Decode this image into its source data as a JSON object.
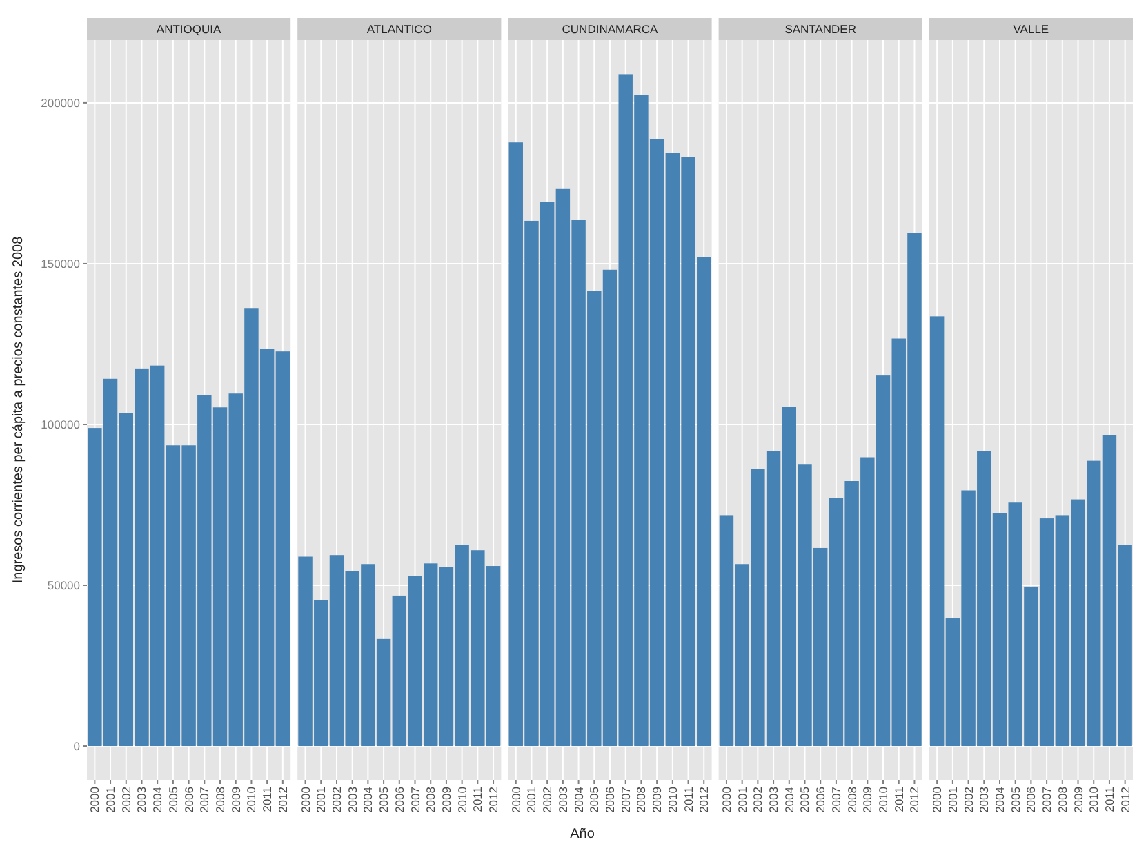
{
  "chart_data": [
    {
      "type": "bar",
      "title": "ANTIOQUIA",
      "ylabel": "Ingresos corrientes per cápita a precios constantes 2008",
      "categories": [
        "2000",
        "2001",
        "2002",
        "2003",
        "2004",
        "2005",
        "2006",
        "2007",
        "2008",
        "2009",
        "2010",
        "2011",
        "2012"
      ],
      "values": [
        98900,
        114200,
        103600,
        117400,
        118300,
        93500,
        93500,
        109200,
        105300,
        109600,
        136200,
        123400,
        122700
      ],
      "color": "#4682b4",
      "ylim": [
        -10500,
        219500
      ],
      "yticks": [
        0,
        50000,
        100000,
        150000,
        200000
      ],
      "grid": true
    },
    {
      "type": "bar",
      "title": "ATLANTICO",
      "categories": [
        "2000",
        "2001",
        "2002",
        "2003",
        "2004",
        "2005",
        "2006",
        "2007",
        "2008",
        "2009",
        "2010",
        "2011",
        "2012"
      ],
      "values": [
        58900,
        45300,
        59400,
        54500,
        56600,
        33300,
        46800,
        53000,
        56800,
        55600,
        62600,
        60900,
        56000
      ],
      "color": "#4682b4",
      "ylim": [
        -10500,
        219500
      ],
      "yticks": [
        0,
        50000,
        100000,
        150000,
        200000
      ],
      "grid": true,
      "tick_labels": "x"
    },
    {
      "type": "bar",
      "title": "CUNDINAMARCA",
      "xlabel": "Año",
      "categories": [
        "2000",
        "2001",
        "2002",
        "2003",
        "2004",
        "2005",
        "2006",
        "2007",
        "2008",
        "2009",
        "2010",
        "2011",
        "2012"
      ],
      "values": [
        187700,
        163300,
        169100,
        173200,
        163500,
        141600,
        148100,
        208900,
        202500,
        188800,
        184400,
        183200,
        152000
      ],
      "color": "#4682b4",
      "ylim": [
        -10500,
        219500
      ],
      "yticks": [
        0,
        50000,
        100000,
        150000,
        200000
      ],
      "grid": true,
      "tick_labels": "x"
    },
    {
      "type": "bar",
      "title": "SANTANDER",
      "categories": [
        "2000",
        "2001",
        "2002",
        "2003",
        "2004",
        "2005",
        "2006",
        "2007",
        "2008",
        "2009",
        "2010",
        "2011",
        "2012"
      ],
      "values": [
        71800,
        56600,
        86200,
        91800,
        105500,
        87500,
        61600,
        77200,
        82400,
        89800,
        115200,
        126700,
        159500
      ],
      "color": "#4682b4",
      "ylim": [
        -10500,
        219500
      ],
      "yticks": [
        0,
        50000,
        100000,
        150000,
        200000
      ],
      "grid": true,
      "tick_labels": "x"
    },
    {
      "type": "bar",
      "title": "VALLE",
      "categories": [
        "2000",
        "2001",
        "2002",
        "2003",
        "2004",
        "2005",
        "2006",
        "2007",
        "2008",
        "2009",
        "2010",
        "2011",
        "2012"
      ],
      "values": [
        133600,
        39700,
        79500,
        91800,
        72400,
        75700,
        49600,
        70800,
        71800,
        76700,
        88700,
        96600,
        62600
      ],
      "color": "#4682b4",
      "ylim": [
        -10500,
        219500
      ],
      "yticks": [
        0,
        50000,
        100000,
        150000,
        200000
      ],
      "grid": true,
      "tick_labels": "x"
    }
  ]
}
